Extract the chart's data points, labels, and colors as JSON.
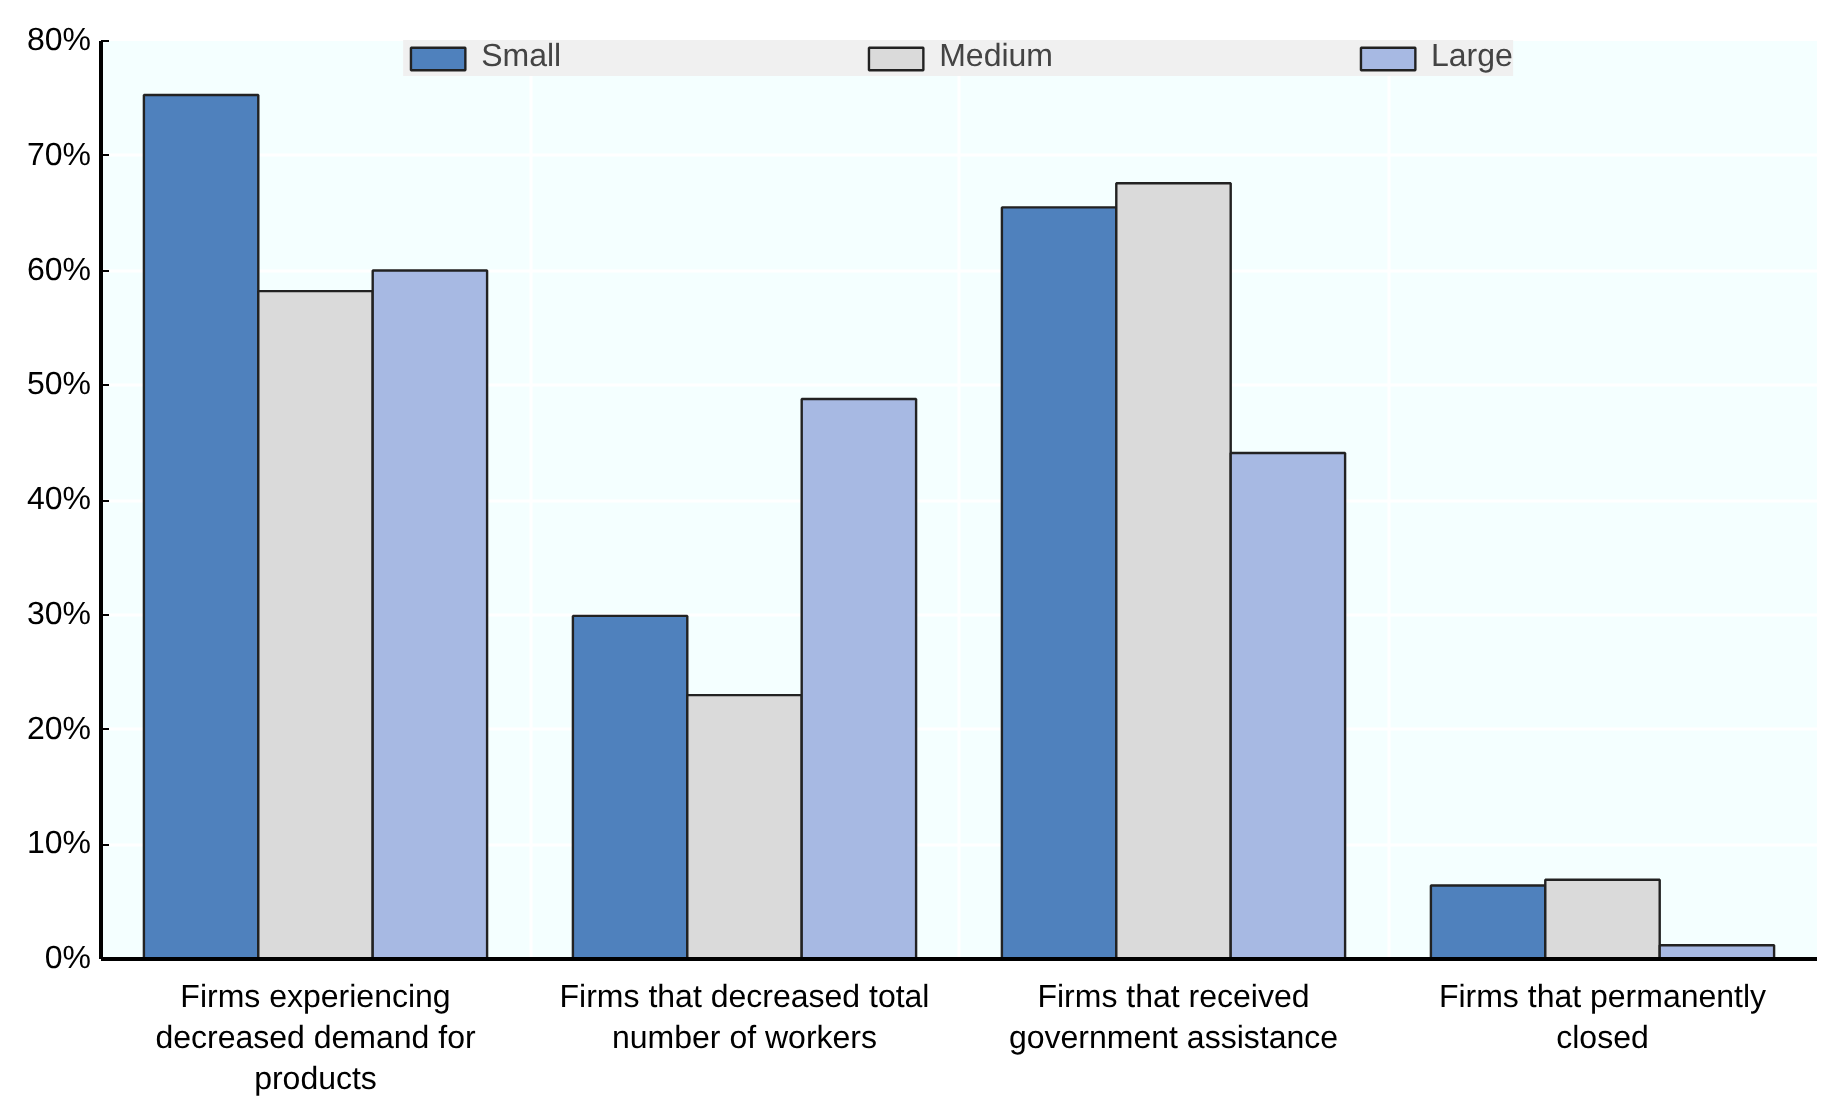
{
  "chart_data": {
    "type": "bar",
    "categories": [
      "Firms experiencing decreased demand for products",
      "Firms that decreased total number of workers",
      "Firms that received government assistance",
      "Firms that permanently closed"
    ],
    "series": [
      {
        "name": "Small",
        "color": "#4f81bd",
        "values": [
          75.3,
          29.9,
          65.5,
          6.4
        ]
      },
      {
        "name": "Medium",
        "color": "#dadada",
        "values": [
          58.2,
          23.0,
          67.6,
          6.9
        ]
      },
      {
        "name": "Large",
        "color": "#a7b9e3",
        "values": [
          60.0,
          48.8,
          44.1,
          1.2
        ]
      }
    ],
    "ylim": [
      0,
      80
    ],
    "yticks": [
      {
        "value": 0,
        "label": "0%"
      },
      {
        "value": 10,
        "label": "10%"
      },
      {
        "value": 20,
        "label": "20%"
      },
      {
        "value": 30,
        "label": "30%"
      },
      {
        "value": 40,
        "label": "40%"
      },
      {
        "value": 50,
        "label": "50%"
      },
      {
        "value": 60,
        "label": "60%"
      },
      {
        "value": 70,
        "label": "70%"
      },
      {
        "value": 80,
        "label": "80%"
      }
    ],
    "grid": true,
    "legend": "top"
  }
}
